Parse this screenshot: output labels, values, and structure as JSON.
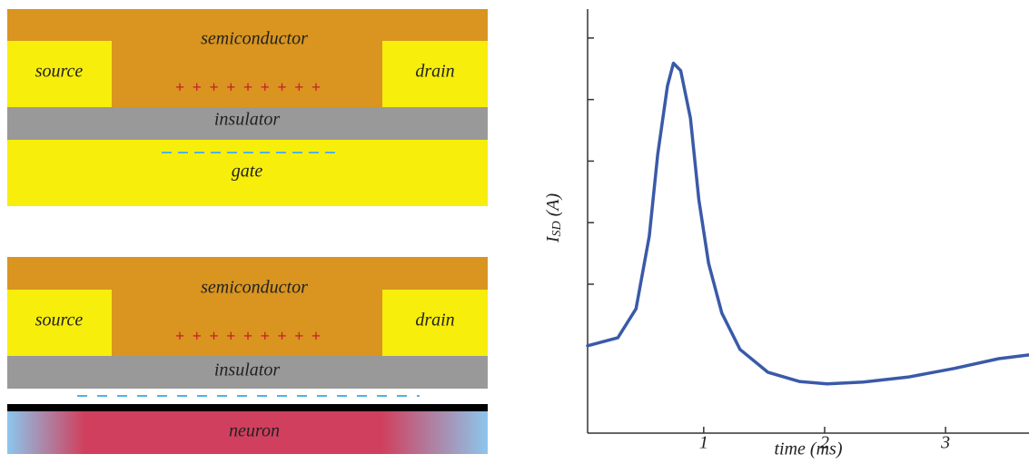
{
  "top_device": {
    "semiconductor": "semiconductor",
    "source": "source",
    "drain": "drain",
    "charges": "+ + + + + + + + +",
    "insulator": "insulator",
    "gate": "gate"
  },
  "bottom_device": {
    "semiconductor": "semiconductor",
    "source": "source",
    "drain": "drain",
    "charges": "+ + + + + + + + +",
    "insulator": "insulator",
    "neuron": "neuron"
  },
  "chart_data": {
    "type": "line",
    "x_label": "time (ms)",
    "y_label": {
      "symbol": "I",
      "subscript": "SD",
      "unit": "(A)"
    },
    "x": [
      0.04,
      0.29,
      0.44,
      0.55,
      0.62,
      0.7,
      0.75,
      0.81,
      0.89,
      0.96,
      1.04,
      1.15,
      1.3,
      1.53,
      1.79,
      2.02,
      2.32,
      2.69,
      3.07,
      3.44,
      3.69
    ],
    "series": [
      {
        "color": "#3a5aa8",
        "values": [
          0.0,
          0.13,
          0.6,
          1.78,
          3.11,
          4.22,
          4.59,
          4.47,
          3.7,
          2.37,
          1.34,
          0.53,
          -0.06,
          -0.43,
          -0.58,
          -0.62,
          -0.59,
          -0.51,
          -0.37,
          -0.21,
          -0.15
        ]
      }
    ],
    "xlim": [
      0.04,
      3.69
    ],
    "ylim": [
      -1.42,
      5.47
    ],
    "xticks": [
      1,
      2,
      3
    ],
    "yticks": [
      1,
      2,
      3,
      4,
      5
    ]
  }
}
